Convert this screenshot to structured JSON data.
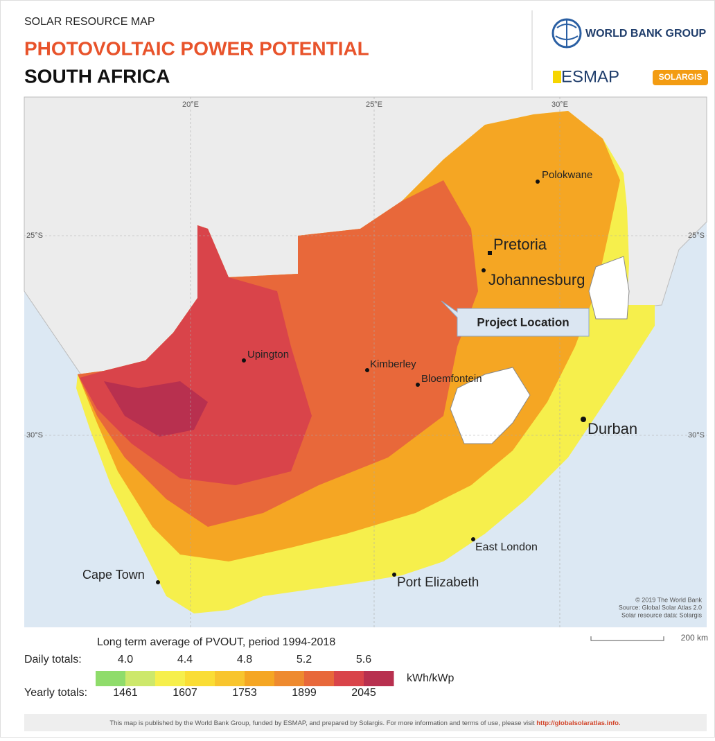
{
  "header": {
    "kicker": "SOLAR RESOURCE MAP",
    "title": "PHOTOVOLTAIC POWER POTENTIAL",
    "country": "SOUTH AFRICA"
  },
  "logos": {
    "world_bank": "WORLD BANK GROUP",
    "esmap": "ESMAP",
    "solargis": "SOLARGIS"
  },
  "map": {
    "longitudes": [
      "20°E",
      "25°E",
      "30°E"
    ],
    "latitudes": [
      "25°S",
      "30°S"
    ],
    "cities": [
      "Polokwane",
      "Pretoria",
      "Johannesburg",
      "Upington",
      "Kimberley",
      "Bloemfontein",
      "Durban",
      "East London",
      "Port Elizabeth",
      "Cape Town"
    ],
    "callout": "Project Location",
    "credits": [
      "© 2019 The World Bank",
      "Source: Global Solar Atlas 2.0",
      "Solar resource data: Solargis"
    ],
    "scale": "200 km"
  },
  "legend": {
    "title": "Long term average of PVOUT, period 1994-2018",
    "daily_label": "Daily totals:",
    "daily_ticks": [
      {
        "value": 4.0,
        "label": "4.0"
      },
      {
        "value": 4.4,
        "label": "4.4"
      },
      {
        "value": 4.8,
        "label": "4.8"
      },
      {
        "value": 5.2,
        "label": "5.2"
      },
      {
        "value": 5.6,
        "label": "5.6"
      }
    ],
    "yearly_label": "Yearly totals:",
    "yearly_ticks": [
      1461,
      1607,
      1753,
      1899,
      2045
    ],
    "unit": "kWh/kWp",
    "colors": [
      "#8fdc6b",
      "#cde86b",
      "#f6ef4c",
      "#fadd35",
      "#f8c52e",
      "#f5a623",
      "#ee8a2f",
      "#e8683a",
      "#d9444a",
      "#b8304f"
    ]
  },
  "footer": {
    "text": "This map is published by the World Bank Group, funded by ESMAP, and prepared by Solargis. For more information and terms of use, please visit ",
    "link": "http://globalsolaratlas.info."
  }
}
